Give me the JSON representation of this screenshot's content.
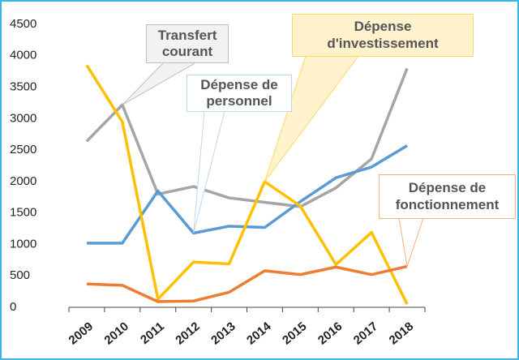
{
  "chart_data": {
    "type": "line",
    "categories": [
      "2009",
      "2010",
      "2011",
      "2012",
      "2013",
      "2014",
      "2015",
      "2016",
      "2017",
      "2018"
    ],
    "ylim": [
      0,
      4500
    ],
    "yticks": [
      0,
      500,
      1000,
      1500,
      2000,
      2500,
      3000,
      3500,
      4000,
      4500
    ],
    "series": [
      {
        "name": "Transfert courant",
        "color": "#a5a5a5",
        "values": [
          2640,
          3220,
          1800,
          1920,
          1740,
          1670,
          1600,
          1900,
          2360,
          3800
        ]
      },
      {
        "name": "Dépense de personnel",
        "color": "#5b9bd5",
        "values": [
          1020,
          1020,
          1850,
          1180,
          1290,
          1270,
          1680,
          2060,
          2230,
          2570
        ]
      },
      {
        "name": "Dépense d'investissement",
        "color": "#ffc000",
        "values": [
          3850,
          2950,
          130,
          720,
          690,
          2000,
          1610,
          680,
          1190,
          50
        ]
      },
      {
        "name": "Dépense de fonctionnement",
        "color": "#ed7d31",
        "values": [
          370,
          350,
          90,
          100,
          240,
          580,
          520,
          640,
          520,
          650
        ]
      }
    ]
  }
}
